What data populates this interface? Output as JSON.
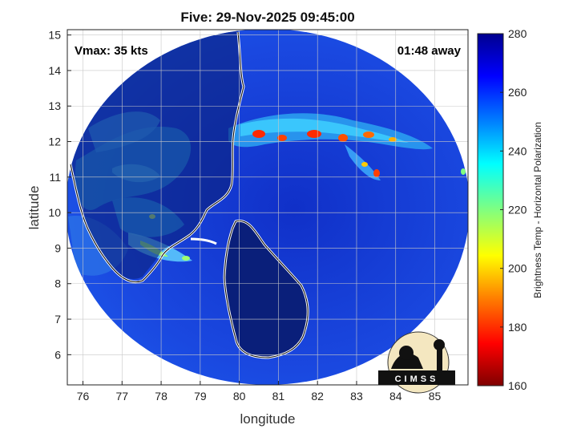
{
  "title": "Five: 29-Nov-2025 09:45:00",
  "annotations": {
    "vmax": "Vmax: 35 kts",
    "away": "01:48 away"
  },
  "axes": {
    "xlabel": "longitude",
    "ylabel": "latitude",
    "xticks": [
      "76",
      "77",
      "78",
      "79",
      "80",
      "81",
      "82",
      "83",
      "84",
      "85"
    ],
    "yticks": [
      "6",
      "7",
      "8",
      "9",
      "10",
      "11",
      "12",
      "13",
      "14",
      "15"
    ],
    "xlim": [
      75.6,
      85.85
    ],
    "ylim": [
      5.15,
      15.15
    ],
    "grid": true
  },
  "colorbar": {
    "label": "Brightness Temp - Horizontal Polarization",
    "ticks": [
      "280",
      "260",
      "240",
      "220",
      "200",
      "180",
      "160"
    ],
    "range": [
      160,
      280
    ],
    "colors": [
      "#7f0000",
      "#ff0000",
      "#ff8000",
      "#ffff00",
      "#80ff80",
      "#00ffff",
      "#0080ff",
      "#0000ff",
      "#00008f"
    ]
  },
  "logo": {
    "text": "CIMSS"
  },
  "colors": {
    "ocean_warm": "#1a3fd6",
    "land_cold": "#0a1f7a",
    "coast": "#ffffff",
    "deep_convection": "#ff2a00"
  }
}
